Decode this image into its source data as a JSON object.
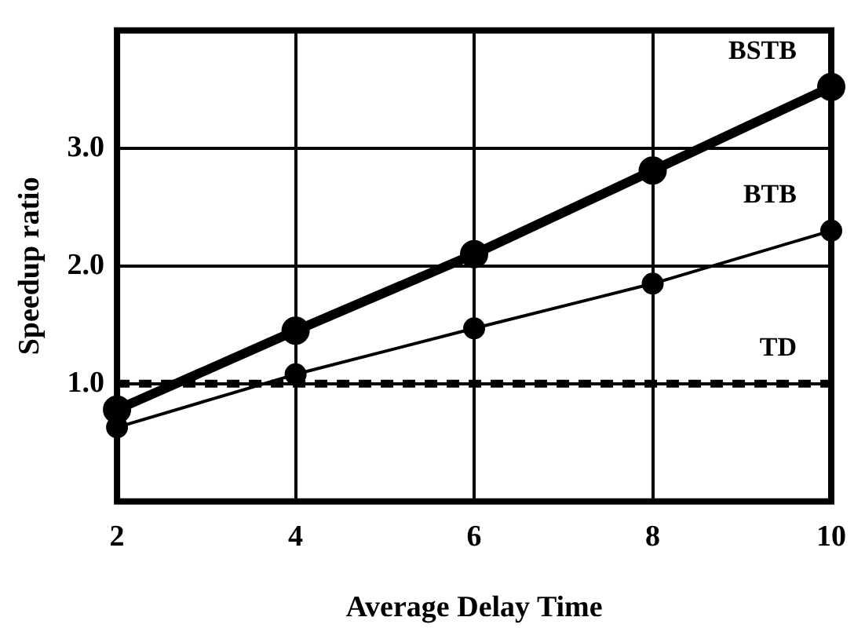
{
  "chart_data": {
    "type": "line",
    "xlabel": "Average Delay Time",
    "ylabel": "Speedup ratio",
    "x": [
      2,
      4,
      6,
      8,
      10
    ],
    "series": [
      {
        "name": "BSTB",
        "color": "#000000",
        "values": [
          0.78,
          1.45,
          2.1,
          2.81,
          3.52
        ],
        "marker": "circle",
        "line_style": "solid"
      },
      {
        "name": "BTB",
        "color": "#000000",
        "values": [
          0.63,
          1.08,
          1.47,
          1.85,
          2.3
        ],
        "marker": "circle",
        "line_style": "solid"
      },
      {
        "name": "TD",
        "color": "#000000",
        "values": [
          1.0,
          1.0,
          1.0,
          1.0,
          1.0
        ],
        "marker": "none",
        "line_style": "dashed"
      }
    ],
    "xlim": [
      2,
      10
    ],
    "xticks": [
      2,
      4,
      6,
      8,
      10
    ],
    "ylim": [
      0,
      4
    ],
    "yticks": [
      {
        "value": 1,
        "label": "1.0"
      },
      {
        "value": 2,
        "label": "2.0"
      },
      {
        "value": 3,
        "label": "3.0"
      }
    ],
    "grid": true,
    "legend": false
  }
}
